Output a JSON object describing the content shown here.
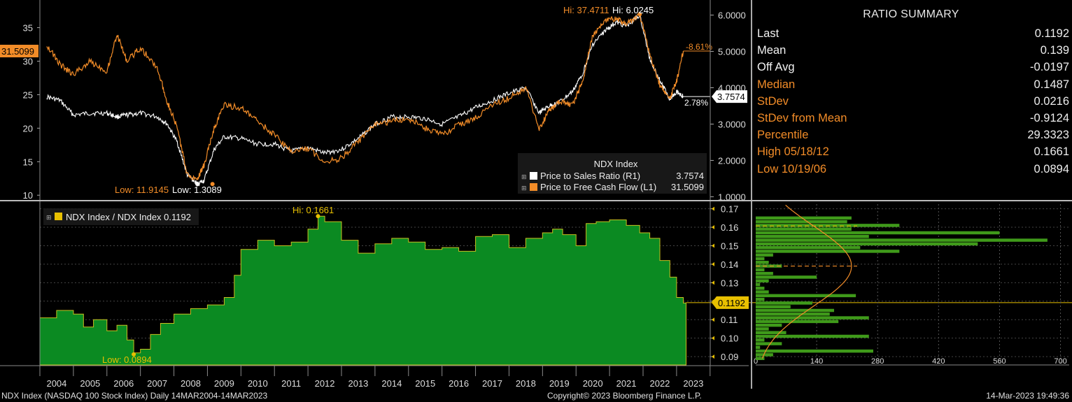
{
  "colors": {
    "white_series": "#ffffff",
    "orange_series": "#f28c28",
    "ratio_fill": "#0b8a22",
    "ratio_line": "#c8c020",
    "yellow_label": "#e8c000",
    "hist_bar": "#3f9a1a",
    "background": "#000000"
  },
  "top_chart": {
    "legend_title": "NDX Index",
    "legend": [
      {
        "name": "Price to Sales Ratio  (R1)",
        "value": "3.7574",
        "color": "#ffffff"
      },
      {
        "name": "Price to Free Cash Flow  (L1)",
        "value": "31.5099",
        "color": "#f28c28"
      }
    ],
    "left_axis_ticks": [
      "10",
      "15",
      "20",
      "25",
      "30",
      "35"
    ],
    "right_axis_ticks": [
      "1.0000",
      "2.0000",
      "3.0000",
      "4.0000",
      "5.0000",
      "6.0000"
    ],
    "annotations": {
      "hi_orange": "Hi: 37.4711",
      "hi_white": "Hi: 6.0245",
      "low_orange": "Low: 11.9145",
      "low_white": "Low: 1.3089",
      "pct_orange": "-8.61%",
      "pct_white": "2.78%",
      "last_left": "31.5099",
      "last_right": "3.7574"
    }
  },
  "bottom_chart": {
    "legend": "NDX Index / NDX Index 0.1192",
    "axis_ticks": [
      "0.09",
      "0.10",
      "0.11",
      "0.12",
      "0.13",
      "0.14",
      "0.15",
      "0.16",
      "0.17"
    ],
    "hi_label": "Hi: 0.1661",
    "low_label": "Low: 0.0894",
    "last_label": "0.1192"
  },
  "x_axis_years": [
    "2004",
    "2005",
    "2006",
    "2007",
    "2008",
    "2009",
    "2010",
    "2011",
    "2012",
    "2013",
    "2014",
    "2015",
    "2016",
    "2017",
    "2018",
    "2019",
    "2020",
    "2021",
    "2022",
    "2023"
  ],
  "histogram": {
    "x_ticks": [
      "0",
      "140",
      "280",
      "420",
      "560",
      "700"
    ]
  },
  "summary": {
    "title": "RATIO SUMMARY",
    "rows": [
      {
        "label": "Last",
        "value": "0.1192",
        "style": "w"
      },
      {
        "label": "Mean",
        "value": "0.139",
        "style": "w"
      },
      {
        "label": "Off Avg",
        "value": "-0.0197",
        "style": "w"
      },
      {
        "label": "Median",
        "value": "0.1487",
        "style": "o"
      },
      {
        "label": "StDev",
        "value": "0.0216",
        "style": "o"
      },
      {
        "label": "StDev from Mean",
        "value": "-0.9124",
        "style": "o"
      },
      {
        "label": "Percentile",
        "value": "29.3323",
        "style": "o"
      },
      {
        "label": "High 05/18/12",
        "value": "0.1661",
        "style": "o"
      },
      {
        "label": "Low 10/19/06",
        "value": "0.0894",
        "style": "o"
      }
    ]
  },
  "footer": {
    "left": "NDX Index (NASDAQ 100 Stock Index)  Daily 14MAR2004-14MAR2023",
    "center": "Copyright© 2023 Bloomberg Finance L.P.",
    "right": "14-Mar-2023 19:49:36"
  },
  "chart_data": [
    {
      "type": "line",
      "title": "",
      "x": [
        2004.2,
        2004.6,
        2005.0,
        2005.5,
        2006.0,
        2006.3,
        2006.6,
        2007.0,
        2007.5,
        2007.8,
        2008.1,
        2008.4,
        2008.7,
        2008.9,
        2009.2,
        2009.5,
        2010.0,
        2010.5,
        2011.0,
        2011.5,
        2012.0,
        2012.5,
        2013.0,
        2013.5,
        2014.0,
        2014.5,
        2015.0,
        2015.5,
        2016.0,
        2016.5,
        2017.0,
        2017.5,
        2018.0,
        2018.5,
        2018.9,
        2019.2,
        2019.5,
        2019.9,
        2020.2,
        2020.5,
        2020.9,
        2021.2,
        2021.5,
        2021.9,
        2022.2,
        2022.5,
        2022.8,
        2023.0,
        2023.2
      ],
      "series": [
        {
          "name": "Price to Free Cash Flow",
          "axis": "left",
          "values": [
            32.5,
            29.5,
            28.0,
            30.0,
            28.5,
            34.0,
            30.0,
            32.0,
            29.0,
            24.0,
            20.0,
            13.0,
            12.5,
            14.5,
            20.0,
            23.5,
            23.0,
            21.0,
            19.0,
            16.5,
            17.0,
            15.0,
            15.5,
            18.0,
            20.5,
            21.0,
            21.5,
            20.0,
            19.0,
            20.5,
            21.5,
            23.5,
            24.5,
            26.0,
            20.0,
            22.5,
            24.0,
            23.5,
            27.0,
            34.0,
            36.0,
            36.5,
            35.5,
            37.0,
            31.0,
            26.5,
            24.5,
            27.0,
            31.5
          ]
        },
        {
          "name": "Price to Sales Ratio",
          "axis": "right",
          "values": [
            3.75,
            3.65,
            3.25,
            3.3,
            3.3,
            3.2,
            3.25,
            3.3,
            3.2,
            3.0,
            2.5,
            1.6,
            1.35,
            1.45,
            2.3,
            2.65,
            2.6,
            2.45,
            2.45,
            2.25,
            2.35,
            2.2,
            2.3,
            2.6,
            3.0,
            3.2,
            3.2,
            3.15,
            3.0,
            3.2,
            3.45,
            3.65,
            3.85,
            4.0,
            3.3,
            3.5,
            3.6,
            3.9,
            4.4,
            5.2,
            5.6,
            5.8,
            5.7,
            6.0,
            4.8,
            4.2,
            3.7,
            3.9,
            3.76
          ]
        }
      ],
      "ylim_left": [
        9.5,
        38.5
      ],
      "ylim_right": [
        0.95,
        6.3
      ],
      "xlim": [
        2004.0,
        2023.9
      ]
    },
    {
      "type": "area",
      "title": "",
      "series_name": "NDX Index / NDX Index",
      "x": [
        2004.0,
        2004.5,
        2005.0,
        2005.3,
        2005.6,
        2006.0,
        2006.3,
        2006.6,
        2006.8,
        2007.0,
        2007.3,
        2007.6,
        2008.0,
        2008.5,
        2009.0,
        2009.5,
        2009.8,
        2010.0,
        2010.5,
        2011.0,
        2011.5,
        2012.0,
        2012.3,
        2012.5,
        2013.0,
        2013.5,
        2014.0,
        2014.5,
        2015.0,
        2015.5,
        2016.0,
        2016.5,
        2017.0,
        2017.5,
        2018.0,
        2018.5,
        2019.0,
        2019.3,
        2019.6,
        2020.0,
        2020.3,
        2020.6,
        2021.0,
        2021.5,
        2021.9,
        2022.2,
        2022.5,
        2022.8,
        2023.0,
        2023.2
      ],
      "values": [
        0.111,
        0.115,
        0.113,
        0.106,
        0.11,
        0.104,
        0.107,
        0.099,
        0.092,
        0.094,
        0.102,
        0.108,
        0.113,
        0.116,
        0.118,
        0.122,
        0.134,
        0.148,
        0.153,
        0.15,
        0.152,
        0.159,
        0.166,
        0.163,
        0.153,
        0.146,
        0.151,
        0.154,
        0.152,
        0.148,
        0.149,
        0.147,
        0.155,
        0.156,
        0.149,
        0.154,
        0.157,
        0.159,
        0.156,
        0.15,
        0.162,
        0.163,
        0.164,
        0.161,
        0.157,
        0.154,
        0.142,
        0.133,
        0.122,
        0.119
      ],
      "ylim": [
        0.0855,
        0.1725
      ]
    },
    {
      "type": "bar",
      "orientation": "horizontal",
      "title": "",
      "bin_centers": [
        0.089,
        0.091,
        0.093,
        0.095,
        0.097,
        0.099,
        0.101,
        0.103,
        0.105,
        0.107,
        0.109,
        0.111,
        0.113,
        0.115,
        0.117,
        0.119,
        0.121,
        0.123,
        0.125,
        0.127,
        0.129,
        0.131,
        0.133,
        0.135,
        0.137,
        0.139,
        0.141,
        0.143,
        0.145,
        0.147,
        0.149,
        0.151,
        0.153,
        0.155,
        0.157,
        0.159,
        0.161,
        0.163,
        0.165
      ],
      "counts": [
        20,
        40,
        270,
        10,
        60,
        20,
        260,
        70,
        30,
        60,
        190,
        260,
        170,
        180,
        80,
        130,
        20,
        230,
        30,
        20,
        10,
        30,
        140,
        40,
        20,
        60,
        30,
        20,
        40,
        330,
        240,
        510,
        670,
        260,
        560,
        220,
        330,
        210,
        220
      ],
      "normal_curve": {
        "mean": 0.139,
        "stdev": 0.0216
      },
      "xlim": [
        0,
        720
      ],
      "ylim": [
        0.0855,
        0.1725
      ]
    }
  ]
}
